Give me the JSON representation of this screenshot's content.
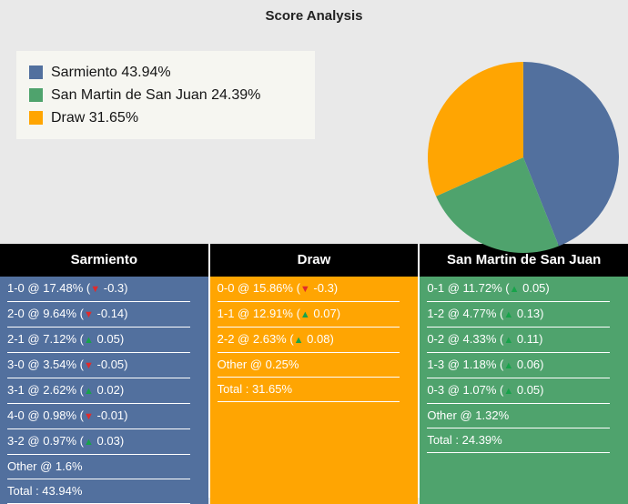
{
  "title": "Score Analysis",
  "chart_data": {
    "type": "pie",
    "title": "Score Analysis",
    "labels": [
      "Sarmiento",
      "San Martin de San Juan",
      "Draw"
    ],
    "values": [
      43.94,
      24.39,
      31.65
    ],
    "colors": [
      "#52709e",
      "#4fa36d",
      "#ffa502"
    ],
    "start_angle_deg": -90,
    "direction": "clockwise",
    "legend_position": "upper-left"
  },
  "legend": {
    "items": [
      {
        "label": "Sarmiento 43.94%",
        "color": "#52709e"
      },
      {
        "label": "San Martin de San Juan 24.39%",
        "color": "#4fa36d"
      },
      {
        "label": "Draw 31.65%",
        "color": "#ffa502"
      }
    ]
  },
  "indicator_colors": {
    "up": "#17a34a",
    "down": "#e02b2b"
  },
  "tables": [
    {
      "header": "Sarmiento",
      "color": "#52709e",
      "rows": [
        {
          "label": "1-0 @ 17.48%",
          "delta": "-0.3",
          "trend": "down"
        },
        {
          "label": "2-0 @ 9.64%",
          "delta": "-0.14",
          "trend": "down"
        },
        {
          "label": "2-1 @ 7.12%",
          "delta": "0.05",
          "trend": "up"
        },
        {
          "label": "3-0 @ 3.54%",
          "delta": "-0.05",
          "trend": "down"
        },
        {
          "label": "3-1 @ 2.62%",
          "delta": "0.02",
          "trend": "up"
        },
        {
          "label": "4-0 @ 0.98%",
          "delta": "-0.01",
          "trend": "down"
        },
        {
          "label": "3-2 @ 0.97%",
          "delta": "0.03",
          "trend": "up"
        },
        {
          "label": "Other @ 1.6%"
        },
        {
          "label": "Total : 43.94%"
        }
      ]
    },
    {
      "header": "Draw",
      "color": "#ffa502",
      "rows": [
        {
          "label": "0-0 @ 15.86%",
          "delta": "-0.3",
          "trend": "down"
        },
        {
          "label": "1-1 @ 12.91%",
          "delta": "0.07",
          "trend": "up"
        },
        {
          "label": "2-2 @ 2.63%",
          "delta": "0.08",
          "trend": "up"
        },
        {
          "label": "Other @ 0.25%"
        },
        {
          "label": "Total : 31.65%"
        }
      ]
    },
    {
      "header": "San Martin de San Juan",
      "color": "#4fa36d",
      "rows": [
        {
          "label": "0-1 @ 11.72%",
          "delta": "0.05",
          "trend": "up"
        },
        {
          "label": "1-2 @ 4.77%",
          "delta": "0.13",
          "trend": "up"
        },
        {
          "label": "0-2 @ 4.33%",
          "delta": "0.11",
          "trend": "up"
        },
        {
          "label": "1-3 @ 1.18%",
          "delta": "0.06",
          "trend": "up"
        },
        {
          "label": "0-3 @ 1.07%",
          "delta": "0.05",
          "trend": "up"
        },
        {
          "label": "Other @ 1.32%"
        },
        {
          "label": "Total : 24.39%"
        }
      ]
    }
  ]
}
